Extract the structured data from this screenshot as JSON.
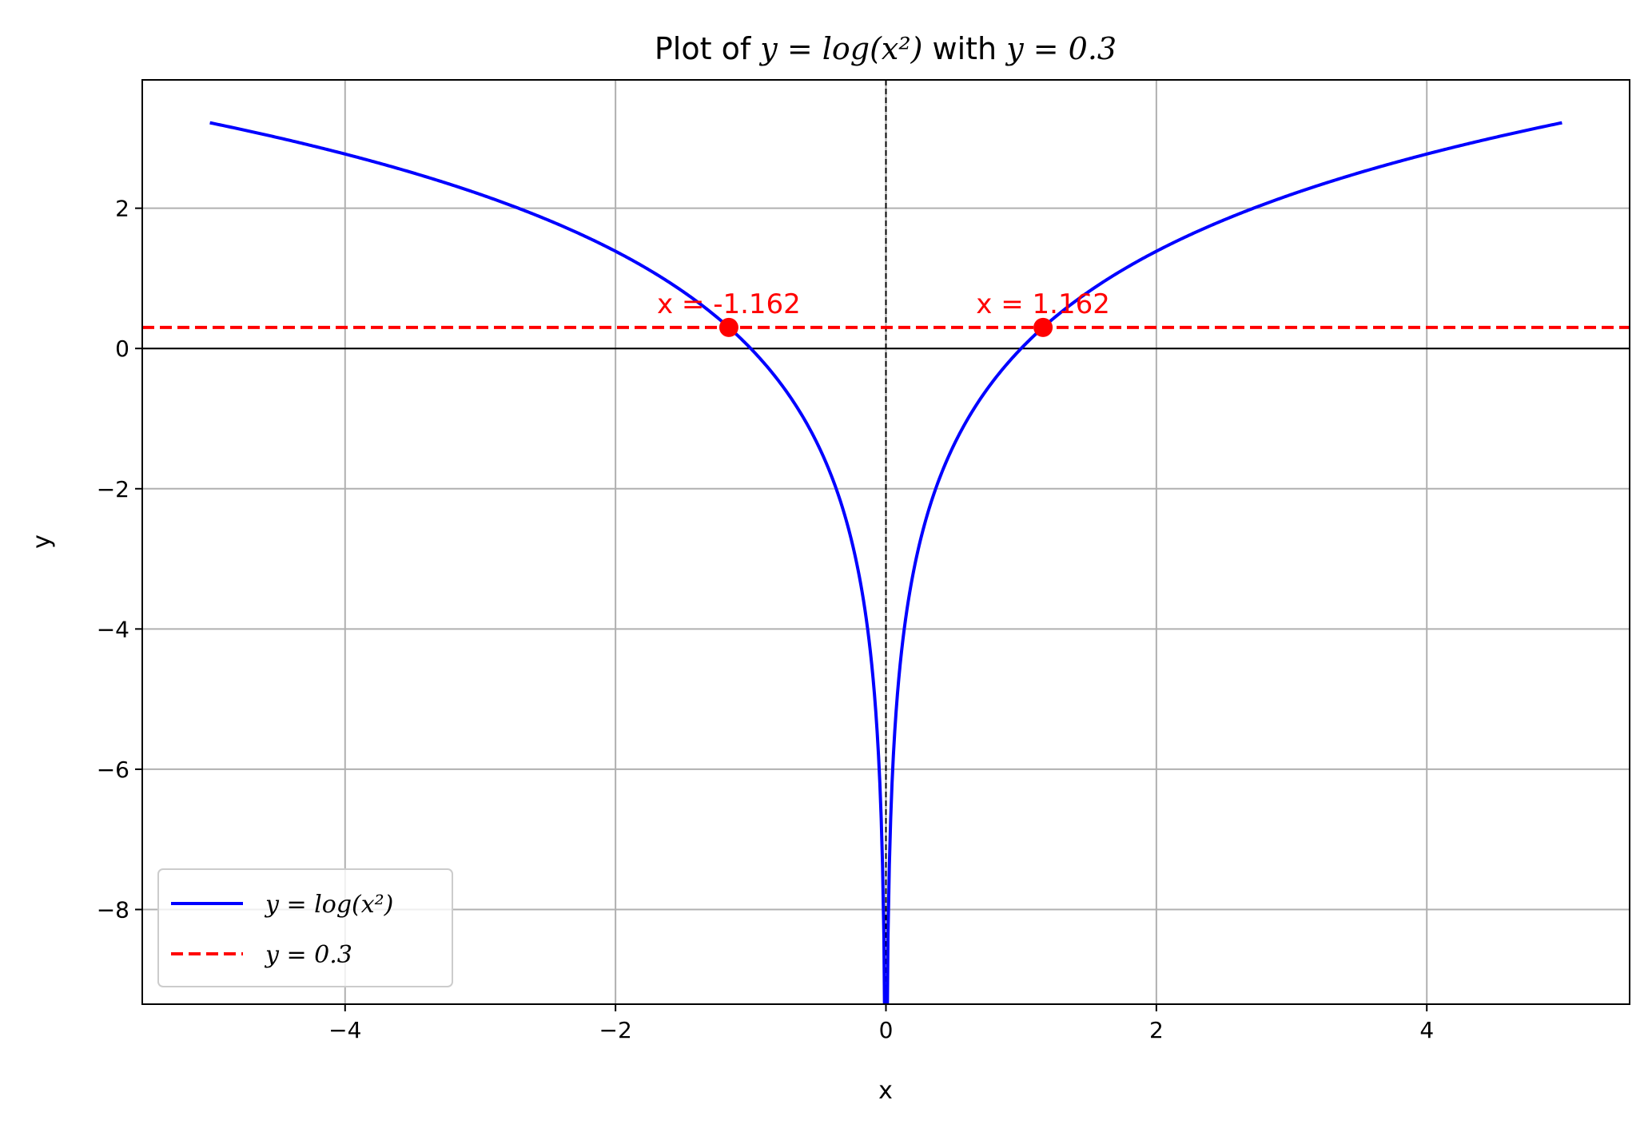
{
  "chart_data": {
    "type": "line",
    "title": {
      "prefix": "Plot of ",
      "eq1": "y = log(x²)",
      "mid": " with ",
      "eq2": "y = 0.3"
    },
    "xlabel": "x",
    "ylabel": "y",
    "xlim": [
      -5.5,
      5.5
    ],
    "ylim": [
      -9.35,
      3.83
    ],
    "xticks": [
      -4,
      -2,
      0,
      2,
      4
    ],
    "xtick_labels": [
      "−4",
      "−2",
      "0",
      "2",
      "4"
    ],
    "yticks": [
      -8,
      -6,
      -4,
      -2,
      0,
      2
    ],
    "ytick_labels": [
      "−8",
      "−6",
      "−4",
      "−2",
      "0",
      "2"
    ],
    "grid": true,
    "legend_position": "lower-left",
    "series": [
      {
        "name": "y = log(x²)",
        "color": "#0000ff",
        "style": "solid",
        "function": "ln(x^2)",
        "x_range": [
          -5,
          5
        ]
      },
      {
        "name": "y = 0.3",
        "color": "#ff0000",
        "style": "dashed",
        "y_constant": 0.3
      }
    ],
    "reference_lines": {
      "horizontal_y0_color": "#000000",
      "vertical_x0_color": "#000000"
    },
    "points": [
      {
        "x": -1.162,
        "y": 0.3,
        "label": "x = -1.162",
        "color": "#ff0000"
      },
      {
        "x": 1.162,
        "y": 0.3,
        "label": "x = 1.162",
        "color": "#ff0000"
      }
    ],
    "colors": {
      "grid": "#b0b0b0",
      "axes": "#000000",
      "curve": "#0000ff",
      "hline": "#ff0000"
    }
  }
}
